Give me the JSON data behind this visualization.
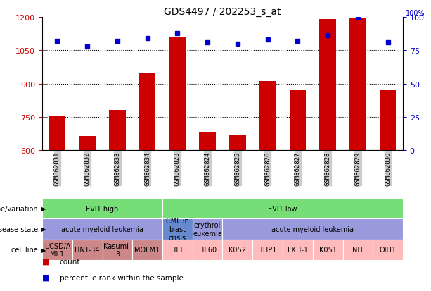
{
  "title": "GDS4497 / 202253_s_at",
  "samples": [
    "GSM862831",
    "GSM862832",
    "GSM862833",
    "GSM862834",
    "GSM862823",
    "GSM862824",
    "GSM862825",
    "GSM862826",
    "GSM862827",
    "GSM862828",
    "GSM862829",
    "GSM862830"
  ],
  "counts": [
    755,
    665,
    780,
    950,
    1110,
    680,
    670,
    910,
    870,
    1190,
    1195,
    870
  ],
  "percentiles": [
    82,
    78,
    82,
    84,
    88,
    81,
    80,
    83,
    82,
    86,
    100,
    81
  ],
  "ylim_left": [
    600,
    1200
  ],
  "ylim_right": [
    0,
    100
  ],
  "yticks_left": [
    600,
    750,
    900,
    1050,
    1200
  ],
  "yticks_right": [
    0,
    25,
    50,
    75,
    100
  ],
  "bar_color": "#cc0000",
  "dot_color": "#0000cc",
  "sample_label_bg": "#cccccc",
  "genotype_groups": [
    {
      "label": "EVI1 high",
      "start": 0,
      "end": 4,
      "color": "#77dd77"
    },
    {
      "label": "EVI1 low",
      "start": 4,
      "end": 12,
      "color": "#77dd77"
    }
  ],
  "disease_groups": [
    {
      "label": "acute myeloid leukemia",
      "start": 0,
      "end": 4,
      "color": "#9999dd"
    },
    {
      "label": "CML in\nblast\ncrisis",
      "start": 4,
      "end": 5,
      "color": "#6688cc"
    },
    {
      "label": "erythrol\neukemia",
      "start": 5,
      "end": 6,
      "color": "#9999dd"
    },
    {
      "label": "acute myeloid leukemia",
      "start": 6,
      "end": 12,
      "color": "#9999dd"
    }
  ],
  "cell_lines": [
    {
      "label": "UCSD/A\nML1",
      "start": 0,
      "end": 1,
      "color": "#cc8888"
    },
    {
      "label": "HNT-34",
      "start": 1,
      "end": 2,
      "color": "#cc8888"
    },
    {
      "label": "Kasumi-\n3",
      "start": 2,
      "end": 3,
      "color": "#cc8888"
    },
    {
      "label": "MOLM1",
      "start": 3,
      "end": 4,
      "color": "#cc8888"
    },
    {
      "label": "HEL",
      "start": 4,
      "end": 5,
      "color": "#ffbbbb"
    },
    {
      "label": "HL60",
      "start": 5,
      "end": 6,
      "color": "#ffbbbb"
    },
    {
      "label": "K052",
      "start": 6,
      "end": 7,
      "color": "#ffbbbb"
    },
    {
      "label": "THP1",
      "start": 7,
      "end": 8,
      "color": "#ffbbbb"
    },
    {
      "label": "FKH-1",
      "start": 8,
      "end": 9,
      "color": "#ffbbbb"
    },
    {
      "label": "K051",
      "start": 9,
      "end": 10,
      "color": "#ffbbbb"
    },
    {
      "label": "NH",
      "start": 10,
      "end": 11,
      "color": "#ffbbbb"
    },
    {
      "label": "OIH1",
      "start": 11,
      "end": 12,
      "color": "#ffbbbb"
    }
  ],
  "row_labels": [
    "genotype/variation",
    "disease state",
    "cell line"
  ],
  "legend_items": [
    {
      "color": "#cc0000",
      "label": "count"
    },
    {
      "color": "#0000cc",
      "label": "percentile rank within the sample"
    }
  ]
}
